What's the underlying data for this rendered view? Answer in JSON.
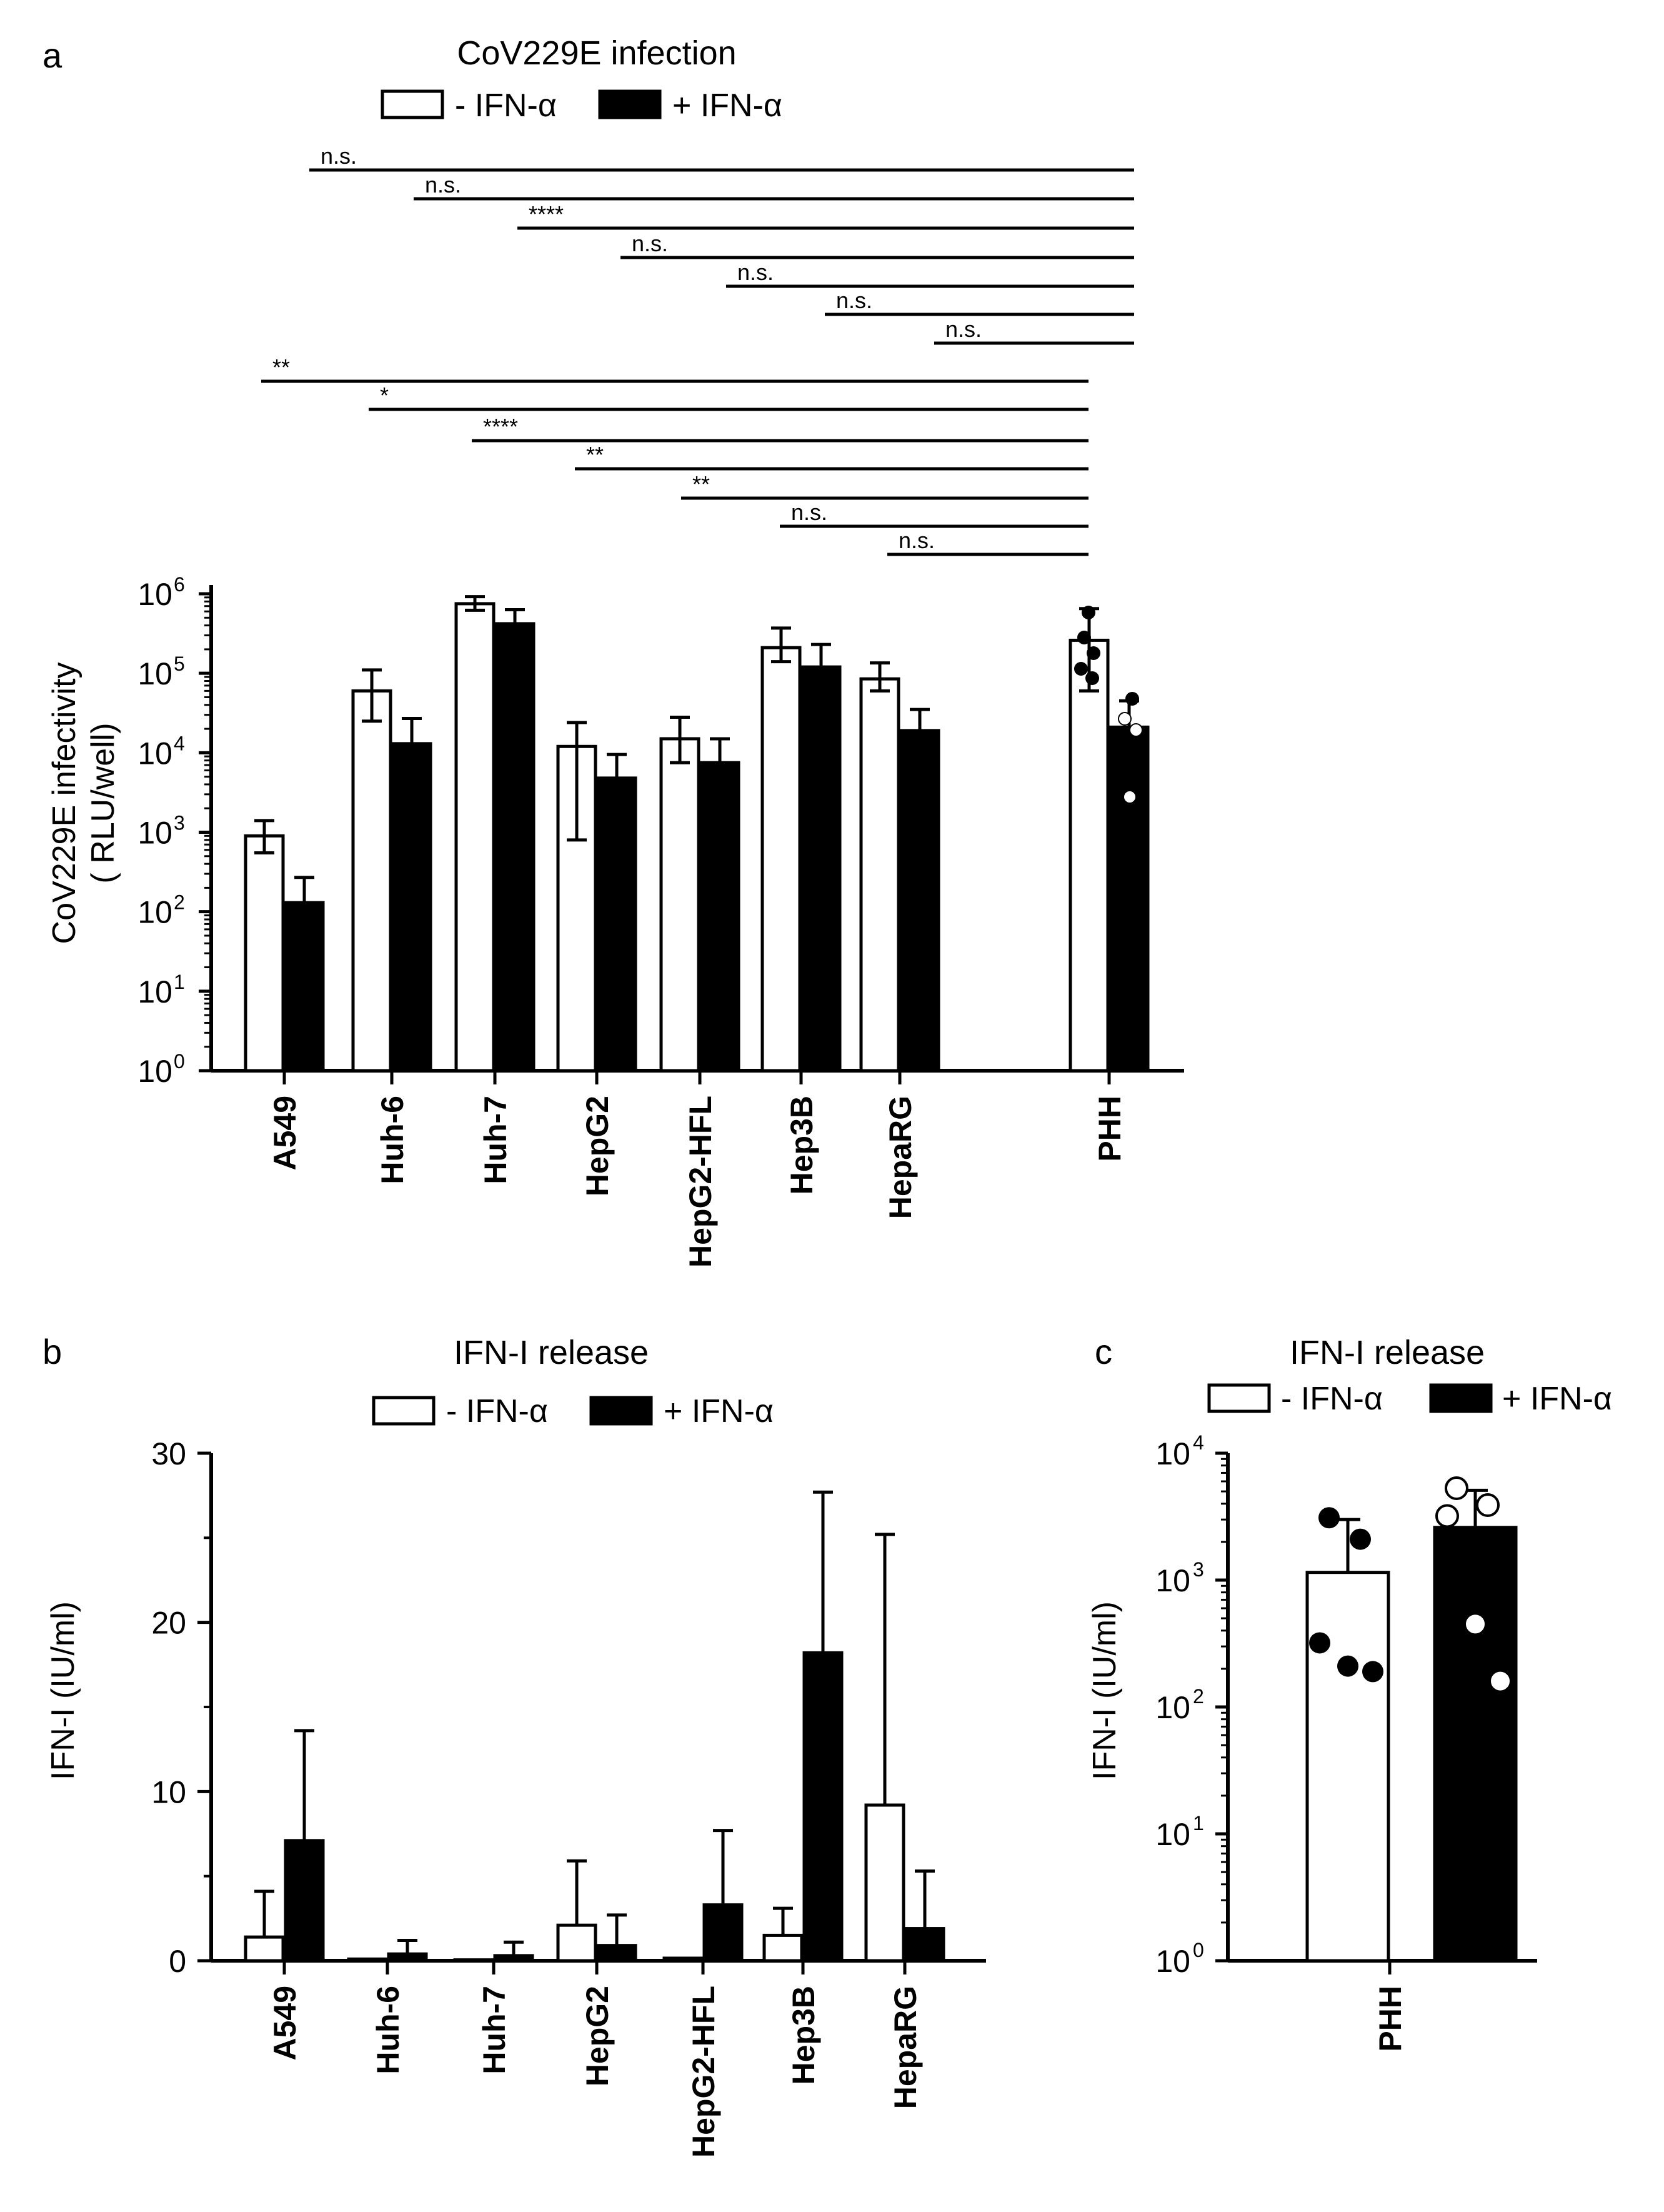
{
  "colors": {
    "minus": "#ffffff",
    "plus": "#000000",
    "outline": "#000000"
  },
  "chart_data": [
    {
      "panel": "a",
      "type": "bar",
      "title": "CoV229E infection",
      "legend": [
        "- IFN-α",
        "+ IFN-α"
      ],
      "ylabel_line1": "CoV229E infectivity",
      "ylabel_line2": "( RLU/well)",
      "yscale": "log10",
      "ylim": [
        1,
        1000000
      ],
      "ytick_exponents": [
        "0",
        "1",
        "2",
        "3",
        "4",
        "5",
        "6"
      ],
      "ytick_base": "10",
      "categories": [
        "A549",
        "Huh-6",
        "Huh-7",
        "HepG2",
        "HepG2-HFL",
        "Hep3B",
        "HepaRG",
        "PHH"
      ],
      "series": [
        {
          "name": "- IFN-α",
          "values": [
            900,
            60000,
            750000,
            12000,
            15000,
            210000,
            85000,
            260000
          ],
          "err_low": [
            550,
            25000,
            620000,
            800,
            7500,
            140000,
            60000,
            60000
          ],
          "err_high": [
            1400,
            110000,
            920000,
            24000,
            28000,
            370000,
            135000,
            650000
          ]
        },
        {
          "name": "+ IFN-α",
          "values": [
            130,
            13000,
            420000,
            4800,
            7500,
            120000,
            19000,
            21000
          ],
          "err_low": [
            130,
            13000,
            420000,
            4800,
            7500,
            120000,
            19000,
            5200
          ],
          "err_high": [
            270,
            27000,
            630000,
            9500,
            15000,
            230000,
            35000,
            45000
          ]
        }
      ],
      "comparisons_plus": [
        {
          "from": "A549",
          "label": "n.s."
        },
        {
          "from": "Huh-6",
          "label": "n.s."
        },
        {
          "from": "Huh-7",
          "label": "****"
        },
        {
          "from": "HepG2",
          "label": "n.s."
        },
        {
          "from": "HepG2-HFL",
          "label": "n.s."
        },
        {
          "from": "Hep3B",
          "label": "n.s."
        },
        {
          "from": "HepaRG",
          "label": "n.s."
        }
      ],
      "comparisons_minus": [
        {
          "from": "A549",
          "label": "**"
        },
        {
          "from": "Huh-6",
          "label": "*"
        },
        {
          "from": "Huh-7",
          "label": "****"
        },
        {
          "from": "HepG2",
          "label": "**"
        },
        {
          "from": "HepG2-HFL",
          "label": "**"
        },
        {
          "from": "Hep3B",
          "label": "n.s."
        },
        {
          "from": "HepaRG",
          "label": "n.s."
        }
      ]
    },
    {
      "panel": "b",
      "type": "bar",
      "title": "IFN-I release",
      "legend": [
        "- IFN-α",
        "+ IFN-α"
      ],
      "ylabel": "IFN-I (IU/ml)",
      "yscale": "linear",
      "ylim": [
        0,
        30
      ],
      "yticks": [
        "0",
        "10",
        "20",
        "30"
      ],
      "categories": [
        "A549",
        "Huh-6",
        "Huh-7",
        "HepG2",
        "HepG2-HFL",
        "Hep3B",
        "HepaRG"
      ],
      "series": [
        {
          "name": "- IFN-α",
          "values": [
            1.4,
            0.1,
            0.05,
            2.1,
            0.15,
            1.5,
            9.2
          ],
          "err_high": [
            4.1,
            0.1,
            0.05,
            5.9,
            0.15,
            3.1,
            25.2
          ]
        },
        {
          "name": "+ IFN-α",
          "values": [
            7.1,
            0.4,
            0.3,
            0.9,
            3.3,
            18.2,
            1.9
          ],
          "err_high": [
            13.6,
            1.2,
            1.1,
            2.7,
            7.7,
            27.7,
            5.3
          ]
        }
      ]
    },
    {
      "panel": "c",
      "type": "bar",
      "title": "IFN-I release",
      "legend": [
        "- IFN-α",
        "+ IFN-α"
      ],
      "ylabel": "IFN-I (IU/ml)",
      "yscale": "log10",
      "ylim": [
        1,
        10000
      ],
      "ytick_exponents": [
        "0",
        "1",
        "2",
        "3",
        "4"
      ],
      "ytick_base": "10",
      "categories": [
        "PHH"
      ],
      "series": [
        {
          "name": "- IFN-α",
          "values": [
            1150
          ],
          "err_high": [
            3000
          ],
          "points": [
            3100,
            2100,
            320,
            210,
            190
          ]
        },
        {
          "name": "+ IFN-α",
          "values": [
            2600
          ],
          "err_high": [
            5100
          ],
          "points": [
            5300,
            3900,
            3200,
            450,
            160
          ]
        }
      ]
    }
  ]
}
